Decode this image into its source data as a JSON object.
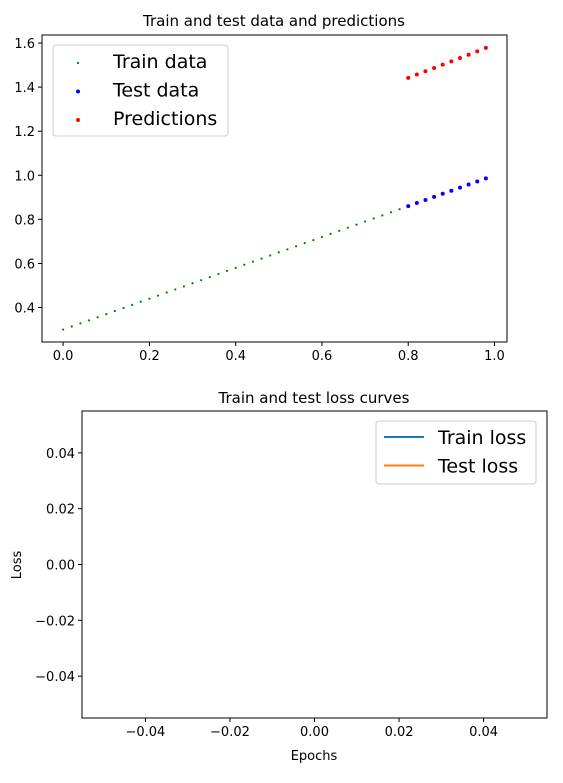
{
  "chart_data": [
    {
      "type": "scatter",
      "title": "Train and test data and predictions",
      "xlabel": "",
      "ylabel": "",
      "xlim": [
        -0.049,
        1.029
      ],
      "ylim": [
        0.2435,
        1.6365
      ],
      "xticks": [
        0.0,
        0.2,
        0.4,
        0.6,
        0.8,
        1.0
      ],
      "yticks": [
        0.4,
        0.6,
        0.8,
        1.0,
        1.2,
        1.4,
        1.6
      ],
      "xtick_labels": [
        "0.0",
        "0.2",
        "0.4",
        "0.6",
        "0.8",
        "1.0"
      ],
      "ytick_labels": [
        "0.4",
        "0.6",
        "0.8",
        "1.0",
        "1.2",
        "1.4",
        "1.6"
      ],
      "grid": false,
      "legend_position": "top-left",
      "series": [
        {
          "name": "Train data",
          "color": "#008000",
          "x": [
            0.0,
            0.02,
            0.04,
            0.06,
            0.08,
            0.1,
            0.12,
            0.14,
            0.16,
            0.18,
            0.2,
            0.22,
            0.24,
            0.26,
            0.28,
            0.3,
            0.32,
            0.34,
            0.36,
            0.38,
            0.4,
            0.42,
            0.44,
            0.46,
            0.48,
            0.5,
            0.52,
            0.54,
            0.56,
            0.58,
            0.6,
            0.62,
            0.64,
            0.66,
            0.68,
            0.7,
            0.72,
            0.74,
            0.76,
            0.78
          ],
          "y": [
            0.3,
            0.314,
            0.328,
            0.342,
            0.356,
            0.37,
            0.384,
            0.398,
            0.412,
            0.426,
            0.44,
            0.454,
            0.468,
            0.482,
            0.496,
            0.51,
            0.524,
            0.538,
            0.552,
            0.566,
            0.58,
            0.594,
            0.608,
            0.622,
            0.636,
            0.65,
            0.664,
            0.678,
            0.692,
            0.706,
            0.72,
            0.734,
            0.748,
            0.762,
            0.776,
            0.79,
            0.804,
            0.818,
            0.832,
            0.846
          ]
        },
        {
          "name": "Test data",
          "color": "#0000ff",
          "x": [
            0.8,
            0.82,
            0.84,
            0.86,
            0.88,
            0.9,
            0.92,
            0.94,
            0.96,
            0.98
          ],
          "y": [
            0.86,
            0.874,
            0.888,
            0.902,
            0.916,
            0.93,
            0.944,
            0.958,
            0.972,
            0.986
          ]
        },
        {
          "name": "Predictions",
          "color": "#ff0000",
          "x": [
            0.8,
            0.82,
            0.84,
            0.86,
            0.88,
            0.9,
            0.92,
            0.94,
            0.96,
            0.98
          ],
          "y": [
            1.442,
            1.457,
            1.472,
            1.487,
            1.502,
            1.517,
            1.532,
            1.547,
            1.562,
            1.578
          ]
        }
      ]
    },
    {
      "type": "line",
      "title": "Train and test loss curves",
      "xlabel": "Epochs",
      "ylabel": "Loss",
      "xlim": [
        -0.055,
        0.055
      ],
      "ylim": [
        -0.055,
        0.055
      ],
      "xticks": [
        -0.04,
        -0.02,
        0.0,
        0.02,
        0.04
      ],
      "yticks": [
        -0.04,
        -0.02,
        0.0,
        0.02,
        0.04
      ],
      "xtick_labels": [
        "−0.04",
        "−0.02",
        "0.00",
        "0.02",
        "0.04"
      ],
      "ytick_labels": [
        "−0.04",
        "−0.02",
        "0.00",
        "0.02",
        "0.04"
      ],
      "grid": false,
      "legend_position": "top-right",
      "series": [
        {
          "name": "Train loss",
          "color": "#1f77b4",
          "x": [],
          "y": []
        },
        {
          "name": "Test loss",
          "color": "#ff7f0e",
          "x": [],
          "y": []
        }
      ]
    }
  ]
}
